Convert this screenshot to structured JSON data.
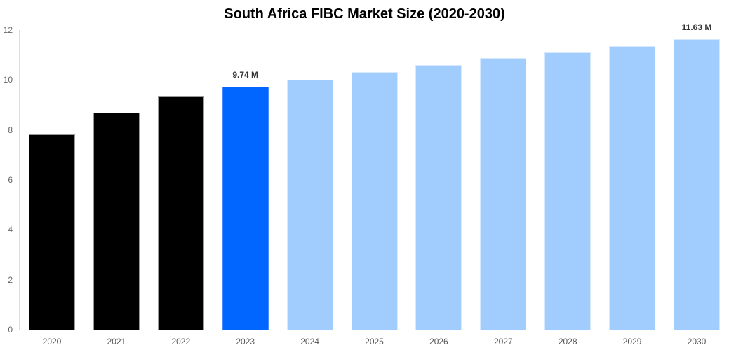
{
  "chart_data": {
    "type": "bar",
    "title": "South Africa FIBC Market Size (2020-2030)",
    "xlabel": "",
    "ylabel": "",
    "ylim": [
      0,
      12
    ],
    "yticks": [
      "0",
      "2",
      "4",
      "6",
      "8",
      "10",
      "12"
    ],
    "grid": false,
    "legend": null,
    "categories": [
      "2020",
      "2021",
      "2022",
      "2023",
      "2024",
      "2025",
      "2026",
      "2027",
      "2028",
      "2029",
      "2030"
    ],
    "values": [
      7.82,
      8.69,
      9.36,
      9.74,
      10.02,
      10.32,
      10.59,
      10.87,
      11.11,
      11.36,
      11.63
    ],
    "bar_types": [
      "hist",
      "hist",
      "hist",
      "current",
      "forecast",
      "forecast",
      "forecast",
      "forecast",
      "forecast",
      "forecast",
      "forecast"
    ],
    "colors": {
      "hist": "#000000",
      "current": "#0066ff",
      "forecast": "#a0cdfd"
    },
    "annotations": [
      {
        "index": 3,
        "text": "9.74 M"
      },
      {
        "index": 10,
        "text": "11.63 M"
      }
    ]
  }
}
